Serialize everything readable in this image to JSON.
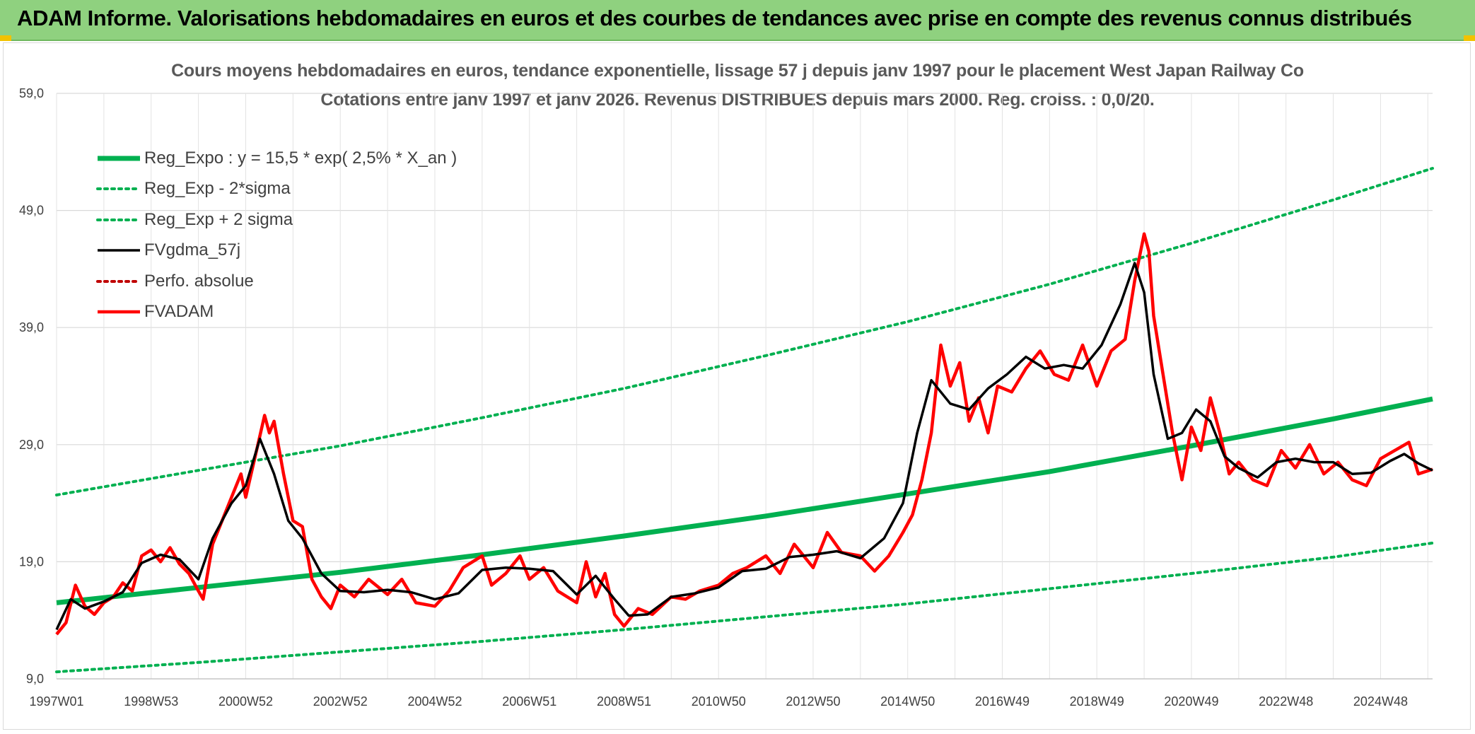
{
  "banner": {
    "title": "ADAM Informe. Valorisations hebdomadaires en euros et des courbes de tendances avec prise en compte des revenus connus distribués"
  },
  "colors": {
    "banner_bg": "#8fd17f",
    "reg_expo": "#00b050",
    "fvgdma": "#000000",
    "fvadam": "#ff0000",
    "perfo": "#c00000"
  },
  "chart_data": {
    "type": "line",
    "title": "Cours moyens hebdomadaires en euros, tendance exponentielle, lissage 57 j depuis janv 1997 pour le placement West Japan Railway Co",
    "subtitle": "Cotations entre janv 1997 et janv 2026. Revenus DISTRIBUES depuis mars 2000. Reg. croiss. : 0,0/20.",
    "xlabel": "",
    "ylabel": "",
    "ylim": [
      9,
      59
    ],
    "yticks": [
      "9,0",
      "19,0",
      "29,0",
      "39,0",
      "49,0",
      "59,0"
    ],
    "xlim": [
      1997.0,
      2026.1
    ],
    "xticks": [
      {
        "label": "1997W01",
        "x": 1997.0
      },
      {
        "label": "1998W53",
        "x": 1999.0
      },
      {
        "label": "2000W52",
        "x": 2001.0
      },
      {
        "label": "2002W52",
        "x": 2003.0
      },
      {
        "label": "2004W52",
        "x": 2005.0
      },
      {
        "label": "2006W51",
        "x": 2007.0
      },
      {
        "label": "2008W51",
        "x": 2009.0
      },
      {
        "label": "2010W50",
        "x": 2011.0
      },
      {
        "label": "2012W50",
        "x": 2013.0
      },
      {
        "label": "2014W50",
        "x": 2015.0
      },
      {
        "label": "2016W49",
        "x": 2017.0
      },
      {
        "label": "2018W49",
        "x": 2019.0
      },
      {
        "label": "2020W49",
        "x": 2021.0
      },
      {
        "label": "2022W48",
        "x": 2023.0
      },
      {
        "label": "2024W48",
        "x": 2025.0
      }
    ],
    "grid": true,
    "legend_position": "top-left",
    "series": [
      {
        "name": "Reg_Expo : y = 15,5 * exp( 2,5% *  X_an )",
        "style": "solid-thick",
        "color": "#00b050",
        "x": [
          1997.0,
          2000.0,
          2003.0,
          2006.0,
          2009.0,
          2012.0,
          2015.0,
          2018.0,
          2021.0,
          2024.0,
          2026.1
        ],
        "values": [
          15.5,
          16.8,
          18.1,
          19.6,
          21.2,
          22.9,
          24.8,
          26.7,
          28.9,
          31.2,
          32.9
        ]
      },
      {
        "name": "Reg_Exp - 2*sigma",
        "style": "dotted",
        "color": "#00b050",
        "x": [
          1997.0,
          2000.0,
          2003.0,
          2006.0,
          2009.0,
          2012.0,
          2015.0,
          2018.0,
          2021.0,
          2024.0,
          2026.1
        ],
        "values": [
          9.6,
          10.4,
          11.3,
          12.2,
          13.2,
          14.3,
          15.4,
          16.7,
          18.0,
          19.4,
          20.6
        ]
      },
      {
        "name": "Reg_Exp + 2 sigma",
        "style": "dotted",
        "color": "#00b050",
        "x": [
          1997.0,
          2000.0,
          2003.0,
          2006.0,
          2009.0,
          2012.0,
          2015.0,
          2018.0,
          2021.0,
          2024.0,
          2026.1
        ],
        "values": [
          24.7,
          26.8,
          28.9,
          31.3,
          33.8,
          36.6,
          39.5,
          42.7,
          46.2,
          49.9,
          52.6
        ]
      },
      {
        "name": "FVgdma_57j",
        "style": "solid",
        "color": "#000000",
        "x": [
          1997.0,
          1997.3,
          1997.6,
          1998.0,
          1998.4,
          1998.8,
          1999.2,
          1999.6,
          2000.0,
          2000.3,
          2000.7,
          2001.0,
          2001.3,
          2001.6,
          2001.9,
          2002.2,
          2002.6,
          2003.0,
          2003.5,
          2004.0,
          2004.5,
          2005.0,
          2005.5,
          2006.0,
          2006.5,
          2007.0,
          2007.5,
          2008.0,
          2008.4,
          2008.8,
          2009.1,
          2009.5,
          2010.0,
          2010.5,
          2011.0,
          2011.5,
          2012.0,
          2012.5,
          2013.0,
          2013.5,
          2014.0,
          2014.5,
          2014.9,
          2015.2,
          2015.5,
          2015.9,
          2016.3,
          2016.7,
          2017.1,
          2017.5,
          2017.9,
          2018.3,
          2018.7,
          2019.1,
          2019.5,
          2019.8,
          2020.0,
          2020.2,
          2020.5,
          2020.8,
          2021.1,
          2021.4,
          2021.7,
          2022.0,
          2022.4,
          2022.8,
          2023.2,
          2023.6,
          2024.0,
          2024.4,
          2024.8,
          2025.2,
          2025.5,
          2025.8,
          2026.1
        ],
        "values": [
          13.2,
          15.8,
          15.0,
          15.6,
          16.4,
          18.9,
          19.6,
          19.2,
          17.5,
          21.0,
          24.0,
          25.5,
          29.5,
          26.5,
          22.5,
          21.0,
          18.0,
          16.5,
          16.4,
          16.6,
          16.4,
          15.8,
          16.3,
          18.3,
          18.5,
          18.4,
          18.2,
          16.2,
          17.8,
          15.8,
          14.4,
          14.5,
          16.0,
          16.3,
          16.8,
          18.2,
          18.4,
          19.4,
          19.6,
          19.9,
          19.3,
          21.0,
          24.0,
          30.0,
          34.5,
          32.5,
          32.0,
          33.8,
          35.0,
          36.5,
          35.5,
          35.8,
          35.5,
          37.5,
          41.0,
          44.5,
          42.0,
          35.0,
          29.5,
          30.0,
          32.0,
          31.0,
          28.0,
          27.0,
          26.2,
          27.5,
          27.8,
          27.5,
          27.5,
          26.5,
          26.6,
          27.6,
          28.2,
          27.4,
          26.8
        ]
      },
      {
        "name": "Perfo. absolue",
        "style": "dotted",
        "color": "#c00000",
        "x": [],
        "values": []
      },
      {
        "name": "FVADAM",
        "style": "solid-thick",
        "color": "#ff0000",
        "x": [
          1997.0,
          1997.2,
          1997.4,
          1997.6,
          1997.8,
          1998.0,
          1998.2,
          1998.4,
          1998.6,
          1998.8,
          1999.0,
          1999.2,
          1999.4,
          1999.6,
          1999.8,
          2000.0,
          2000.1,
          2000.3,
          2000.5,
          2000.7,
          2000.9,
          2001.0,
          2001.2,
          2001.4,
          2001.5,
          2001.6,
          2001.8,
          2002.0,
          2002.2,
          2002.4,
          2002.6,
          2002.8,
          2003.0,
          2003.3,
          2003.6,
          2004.0,
          2004.3,
          2004.6,
          2005.0,
          2005.3,
          2005.6,
          2006.0,
          2006.2,
          2006.5,
          2006.8,
          2007.0,
          2007.3,
          2007.6,
          2008.0,
          2008.2,
          2008.4,
          2008.6,
          2008.8,
          2009.0,
          2009.3,
          2009.6,
          2010.0,
          2010.3,
          2010.6,
          2011.0,
          2011.3,
          2011.6,
          2012.0,
          2012.3,
          2012.6,
          2013.0,
          2013.3,
          2013.6,
          2014.0,
          2014.3,
          2014.6,
          2014.9,
          2015.1,
          2015.3,
          2015.5,
          2015.7,
          2015.9,
          2016.1,
          2016.3,
          2016.5,
          2016.7,
          2016.9,
          2017.2,
          2017.5,
          2017.8,
          2018.1,
          2018.4,
          2018.7,
          2019.0,
          2019.3,
          2019.6,
          2019.8,
          2020.0,
          2020.1,
          2020.2,
          2020.4,
          2020.6,
          2020.8,
          2021.0,
          2021.2,
          2021.4,
          2021.6,
          2021.8,
          2022.0,
          2022.3,
          2022.6,
          2022.9,
          2023.2,
          2023.5,
          2023.8,
          2024.1,
          2024.4,
          2024.7,
          2025.0,
          2025.3,
          2025.6,
          2025.8,
          2026.1
        ],
        "values": [
          12.8,
          13.8,
          17.0,
          15.2,
          14.5,
          15.5,
          16.0,
          17.2,
          16.5,
          19.5,
          20.0,
          19.0,
          20.2,
          18.8,
          18.0,
          16.5,
          15.8,
          20.5,
          22.5,
          24.5,
          26.5,
          24.5,
          28.0,
          31.5,
          30.0,
          31.0,
          26.5,
          22.5,
          22.0,
          17.5,
          16.0,
          15.0,
          17.0,
          16.0,
          17.5,
          16.2,
          17.5,
          15.5,
          15.2,
          16.5,
          18.5,
          19.5,
          17.0,
          18.0,
          19.5,
          17.5,
          18.5,
          16.5,
          15.5,
          19.0,
          16.0,
          18.0,
          14.5,
          13.5,
          15.0,
          14.5,
          16.0,
          15.8,
          16.5,
          17.0,
          18.0,
          18.5,
          19.5,
          18.0,
          20.5,
          18.5,
          21.5,
          19.8,
          19.5,
          18.2,
          19.5,
          21.5,
          23.0,
          26.0,
          30.0,
          37.5,
          34.0,
          36.0,
          31.0,
          33.0,
          30.0,
          34.0,
          33.5,
          35.5,
          37.0,
          35.0,
          34.5,
          37.5,
          34.0,
          37.0,
          38.0,
          43.0,
          47.0,
          45.5,
          40.0,
          35.0,
          30.0,
          26.0,
          30.5,
          28.5,
          33.0,
          30.0,
          26.5,
          27.5,
          26.0,
          25.5,
          28.5,
          27.0,
          29.0,
          26.5,
          27.5,
          26.0,
          25.5,
          27.8,
          28.5,
          29.2,
          26.5,
          26.9
        ]
      }
    ]
  }
}
